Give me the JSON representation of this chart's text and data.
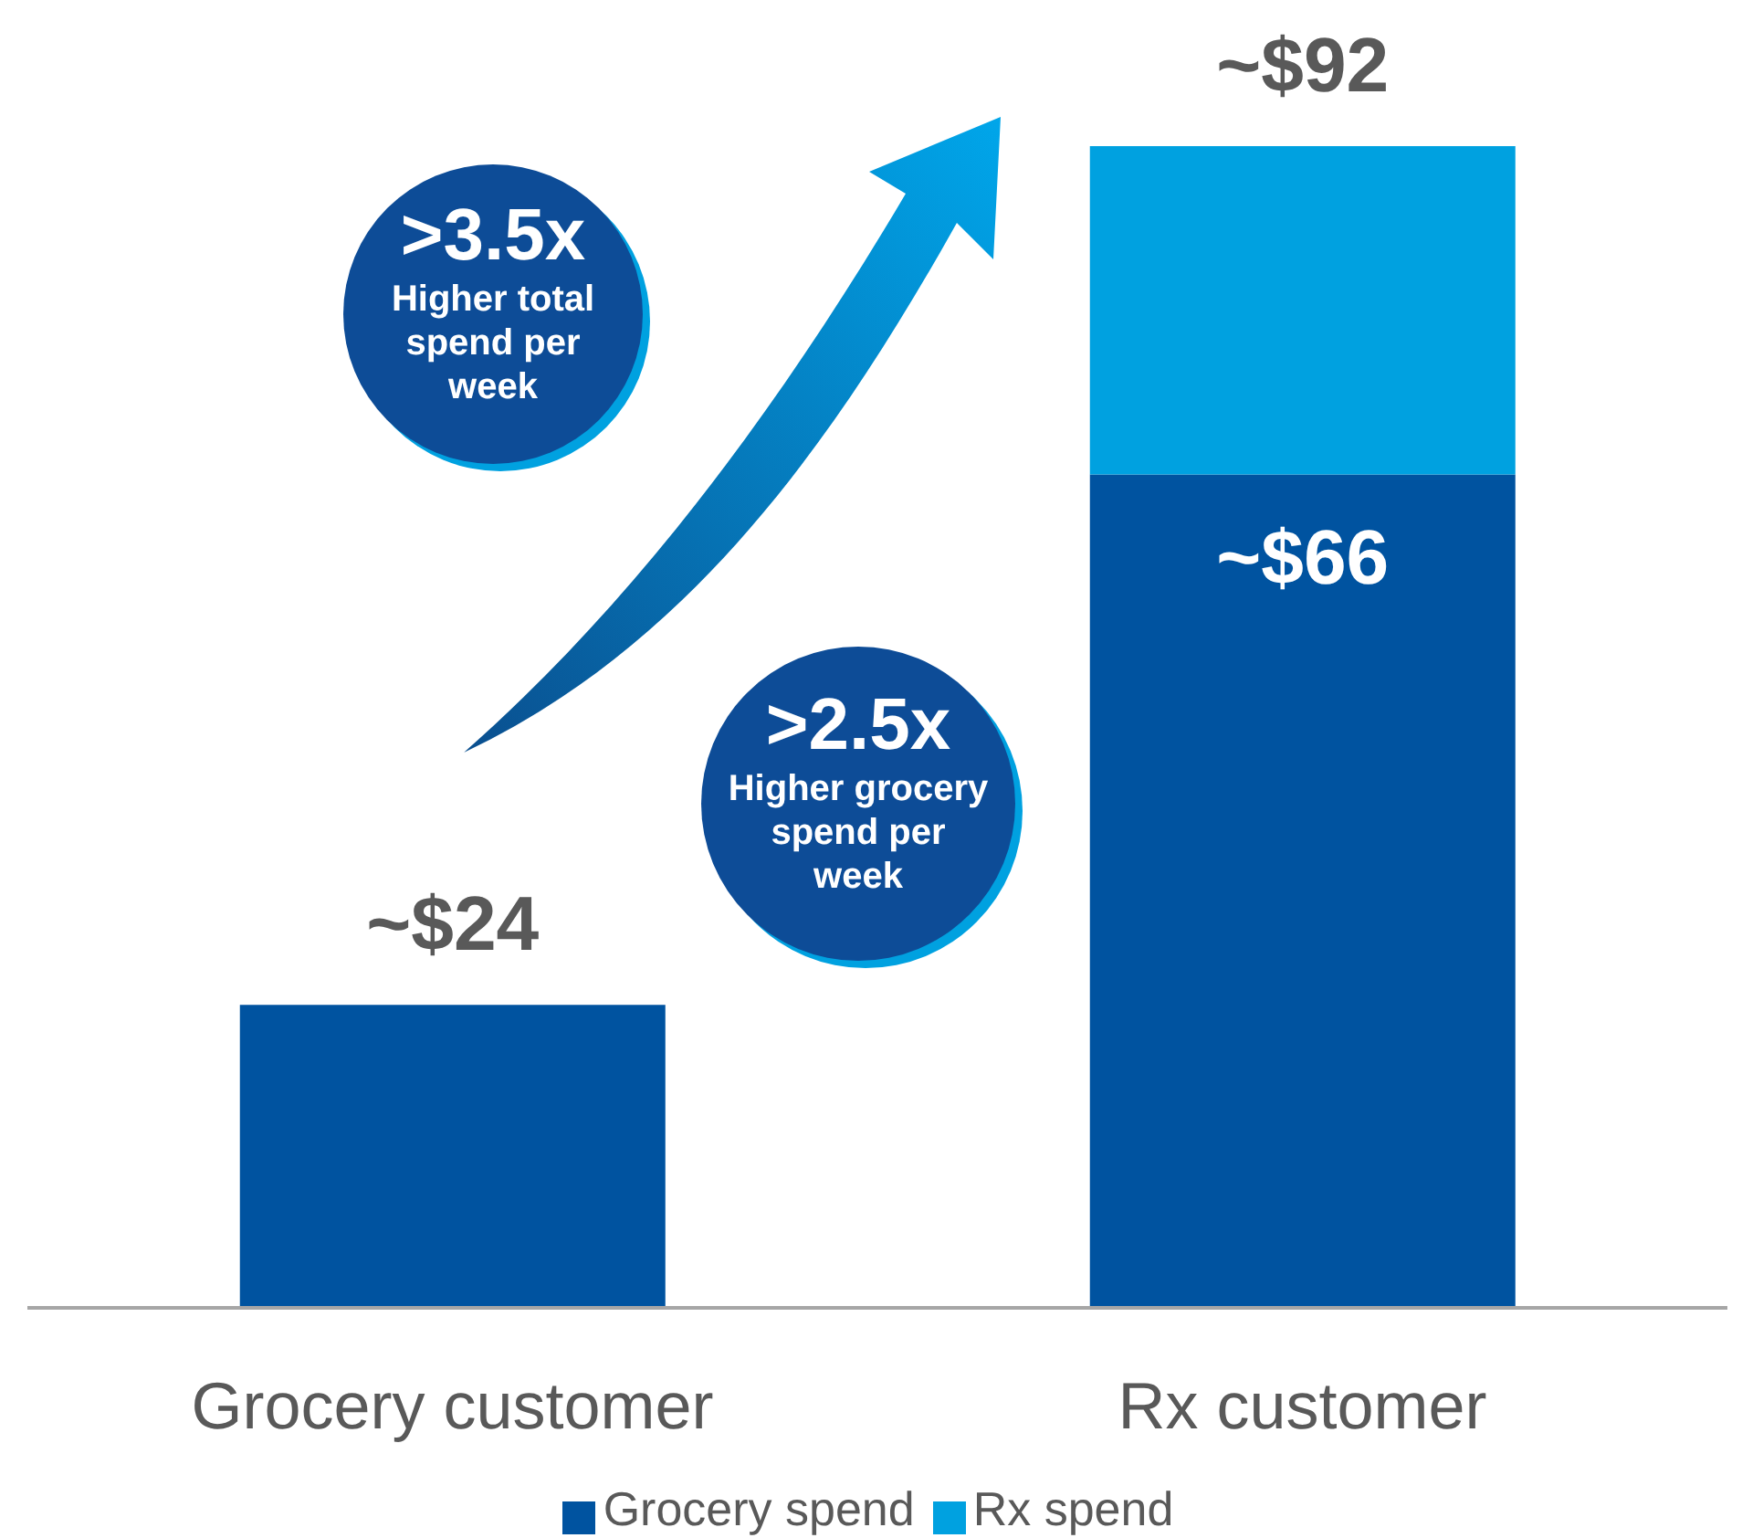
{
  "chart_data": {
    "type": "bar",
    "stacked": true,
    "categories": [
      "Grocery customer",
      "Rx customer"
    ],
    "series": [
      {
        "name": "Grocery spend",
        "color": "#0053a0",
        "values": [
          24,
          66
        ],
        "value_labels": [
          null,
          "~$66"
        ]
      },
      {
        "name": "Rx spend",
        "color": "#00a1e0",
        "values": [
          null,
          26
        ],
        "value_labels": [
          null,
          null
        ]
      }
    ],
    "totals": [
      "~$24",
      "~$92"
    ],
    "annotations": [
      ">3.5x",
      "Higher total spend per week",
      ">2.5x",
      "Higher grocery spend per week"
    ],
    "legend": "bottom"
  }
}
